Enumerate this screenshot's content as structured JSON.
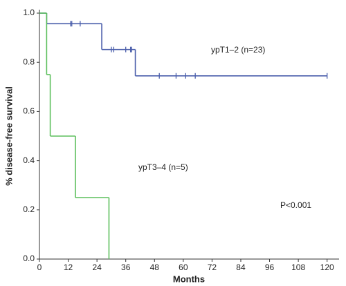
{
  "chart_data": {
    "type": "km",
    "xlabel": "Months",
    "ylabel": "% disease-free survival",
    "xlim": [
      0,
      125
    ],
    "ylim": [
      0,
      1
    ],
    "xticks": [
      0,
      12,
      24,
      36,
      48,
      60,
      72,
      84,
      96,
      108,
      120
    ],
    "yticks": [
      {
        "value": 0,
        "label": "0.0"
      },
      {
        "value": 0.2,
        "label": "0.2"
      },
      {
        "value": 0.4,
        "label": "0.4"
      },
      {
        "value": 0.6,
        "label": "0.6"
      },
      {
        "value": 0.8,
        "label": "0.8"
      },
      {
        "value": 1,
        "label": "1.0"
      }
    ],
    "series": [
      {
        "name": "ypT1–2 (n=23)",
        "color": "#4a5eab",
        "x": [
          0,
          3,
          26,
          40,
          120
        ],
        "values": [
          1,
          0.957,
          0.852,
          0.745,
          0.745
        ],
        "censored": {
          "x": [
            13,
            13.5,
            17,
            30,
            31,
            36,
            38,
            38.5,
            50,
            57,
            61,
            65,
            120
          ],
          "values": [
            0.957,
            0.957,
            0.957,
            0.852,
            0.852,
            0.852,
            0.852,
            0.852,
            0.745,
            0.745,
            0.745,
            0.745,
            0.745
          ]
        }
      },
      {
        "name": "ypT3–4 (n=5)",
        "color": "#5cbf5c",
        "x": [
          0,
          3,
          4.5,
          15,
          29
        ],
        "values": [
          1,
          0.75,
          0.5,
          0.25,
          0
        ],
        "censored": {
          "x": [],
          "values": []
        }
      }
    ],
    "annotation": "P<0.001"
  }
}
